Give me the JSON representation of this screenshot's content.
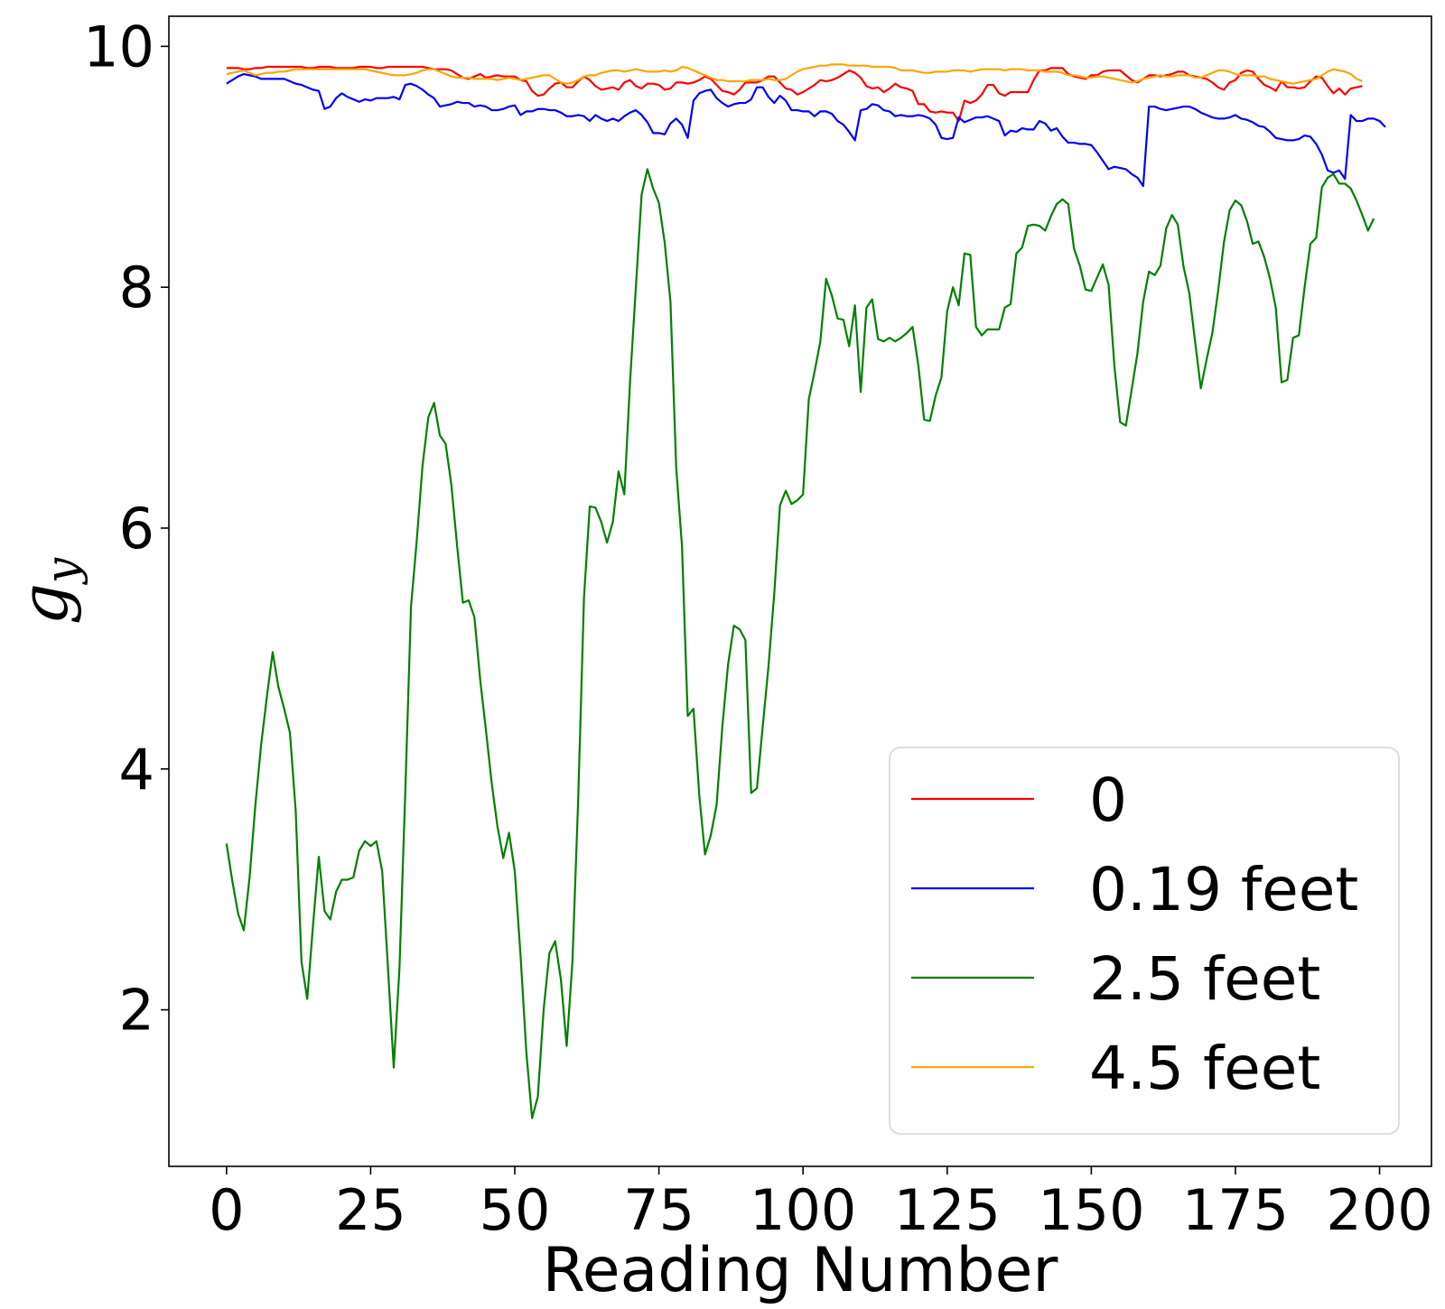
{
  "chart_data": {
    "type": "line",
    "title": "",
    "xlabel": "Reading Number",
    "ylabel": {
      "main": "g",
      "sub": "y"
    },
    "xlim": [
      -10,
      209
    ],
    "ylim": [
      0.7,
      10.25
    ],
    "xticks": [
      0,
      25,
      50,
      75,
      100,
      125,
      150,
      175,
      200
    ],
    "yticks": [
      2,
      4,
      6,
      8,
      10
    ],
    "grid": false,
    "legend": {
      "position": "lower-right"
    },
    "series": [
      {
        "name": "0",
        "color": "#ff0000",
        "x_start": 0,
        "x_step": 1,
        "values": [
          9.82,
          9.82,
          9.82,
          9.81,
          9.81,
          9.82,
          9.82,
          9.83,
          9.83,
          9.83,
          9.83,
          9.83,
          9.83,
          9.83,
          9.82,
          9.82,
          9.83,
          9.83,
          9.83,
          9.82,
          9.82,
          9.82,
          9.82,
          9.83,
          9.83,
          9.83,
          9.82,
          9.82,
          9.83,
          9.83,
          9.83,
          9.83,
          9.83,
          9.83,
          9.83,
          9.82,
          9.81,
          9.81,
          9.81,
          9.8,
          9.77,
          9.74,
          9.73,
          9.75,
          9.77,
          9.74,
          9.75,
          9.76,
          9.75,
          9.75,
          9.75,
          9.72,
          9.71,
          9.63,
          9.59,
          9.6,
          9.65,
          9.69,
          9.7,
          9.66,
          9.66,
          9.71,
          9.75,
          9.72,
          9.67,
          9.64,
          9.65,
          9.66,
          9.64,
          9.7,
          9.72,
          9.67,
          9.65,
          9.69,
          9.69,
          9.68,
          9.64,
          9.65,
          9.7,
          9.7,
          9.69,
          9.7,
          9.72,
          9.75,
          9.73,
          9.68,
          9.63,
          9.62,
          9.6,
          9.64,
          9.7,
          9.7,
          9.7,
          9.72,
          9.75,
          9.75,
          9.7,
          9.65,
          9.64,
          9.6,
          9.62,
          9.65,
          9.68,
          9.72,
          9.71,
          9.72,
          9.74,
          9.77,
          9.8,
          9.78,
          9.74,
          9.67,
          9.65,
          9.66,
          9.62,
          9.65,
          9.69,
          9.66,
          9.65,
          9.63,
          9.52,
          9.52,
          9.46,
          9.45,
          9.46,
          9.45,
          9.45,
          9.38,
          9.55,
          9.53,
          9.55,
          9.6,
          9.68,
          9.68,
          9.61,
          9.59,
          9.62,
          9.62,
          9.62,
          9.62,
          9.72,
          9.8,
          9.8,
          9.82,
          9.82,
          9.82,
          9.77,
          9.75,
          9.74,
          9.73,
          9.76,
          9.76,
          9.79,
          9.8,
          9.8,
          9.8,
          9.76,
          9.72,
          9.7,
          9.73,
          9.76,
          9.76,
          9.75,
          9.76,
          9.77,
          9.79,
          9.79,
          9.76,
          9.75,
          9.74,
          9.73,
          9.7,
          9.66,
          9.64,
          9.7,
          9.72,
          9.78,
          9.8,
          9.79,
          9.73,
          9.68,
          9.66,
          9.63,
          9.71,
          9.66,
          9.66,
          9.65,
          9.66,
          9.71,
          9.75,
          9.74,
          9.67,
          9.61,
          9.65,
          9.6,
          9.65,
          9.66,
          9.67
        ]
      },
      {
        "name": "0.19 feet",
        "color": "#0000ff",
        "x_start": 0,
        "x_step": 1,
        "values": [
          9.69,
          9.72,
          9.75,
          9.77,
          9.76,
          9.75,
          9.73,
          9.73,
          9.73,
          9.73,
          9.73,
          9.71,
          9.69,
          9.68,
          9.66,
          9.64,
          9.63,
          9.48,
          9.5,
          9.57,
          9.61,
          9.58,
          9.56,
          9.54,
          9.56,
          9.55,
          9.57,
          9.57,
          9.57,
          9.58,
          9.56,
          9.68,
          9.69,
          9.67,
          9.64,
          9.6,
          9.57,
          9.5,
          9.51,
          9.52,
          9.54,
          9.53,
          9.53,
          9.5,
          9.51,
          9.5,
          9.47,
          9.47,
          9.48,
          9.5,
          9.51,
          9.43,
          9.46,
          9.46,
          9.48,
          9.48,
          9.47,
          9.47,
          9.45,
          9.42,
          9.42,
          9.43,
          9.42,
          9.38,
          9.43,
          9.4,
          9.38,
          9.4,
          9.38,
          9.42,
          9.45,
          9.47,
          9.43,
          9.37,
          9.28,
          9.28,
          9.27,
          9.36,
          9.4,
          9.35,
          9.24,
          9.55,
          9.61,
          9.63,
          9.64,
          9.57,
          9.53,
          9.5,
          9.52,
          9.53,
          9.53,
          9.56,
          9.66,
          9.66,
          9.58,
          9.53,
          9.59,
          9.55,
          9.47,
          9.47,
          9.46,
          9.46,
          9.42,
          9.46,
          9.46,
          9.44,
          9.38,
          9.35,
          9.29,
          9.22,
          9.47,
          9.48,
          9.52,
          9.51,
          9.47,
          9.46,
          9.42,
          9.43,
          9.42,
          9.42,
          9.43,
          9.42,
          9.4,
          9.35,
          9.24,
          9.23,
          9.24,
          9.41,
          9.37,
          9.39,
          9.41,
          9.41,
          9.42,
          9.4,
          9.38,
          9.26,
          9.3,
          9.29,
          9.32,
          9.31,
          9.31,
          9.38,
          9.36,
          9.3,
          9.32,
          9.25,
          9.2,
          9.2,
          9.19,
          9.19,
          9.18,
          9.12,
          9.05,
          8.98,
          9.0,
          8.99,
          8.98,
          8.94,
          8.91,
          8.84,
          9.5,
          9.5,
          9.48,
          9.47,
          9.48,
          9.49,
          9.5,
          9.5,
          9.48,
          9.45,
          9.43,
          9.41,
          9.4,
          9.4,
          9.41,
          9.43,
          9.4,
          9.39,
          9.37,
          9.34,
          9.33,
          9.29,
          9.24,
          9.23,
          9.22,
          9.22,
          9.23,
          9.26,
          9.25,
          9.19,
          9.1,
          8.97,
          8.95,
          8.97,
          8.9,
          9.43,
          9.38,
          9.38,
          9.4,
          9.4,
          9.38,
          9.33
        ]
      },
      {
        "name": "2.5 feet",
        "color": "#008000",
        "x_start": 0,
        "x_step": 1,
        "values": [
          3.38,
          3.07,
          2.8,
          2.66,
          3.1,
          3.7,
          4.2,
          4.6,
          4.97,
          4.68,
          4.5,
          4.3,
          3.65,
          2.4,
          2.09,
          2.7,
          3.27,
          2.82,
          2.75,
          2.98,
          3.08,
          3.08,
          3.1,
          3.32,
          3.4,
          3.36,
          3.4,
          3.15,
          2.35,
          1.52,
          2.35,
          3.8,
          5.35,
          5.9,
          6.52,
          6.92,
          7.04,
          6.77,
          6.7,
          6.36,
          5.85,
          5.38,
          5.4,
          5.26,
          4.74,
          4.32,
          3.88,
          3.52,
          3.26,
          3.47,
          3.15,
          2.45,
          1.65,
          1.1,
          1.28,
          2.0,
          2.47,
          2.57,
          2.25,
          1.7,
          2.4,
          3.75,
          5.42,
          6.18,
          6.17,
          6.05,
          5.88,
          6.05,
          6.47,
          6.28,
          7.22,
          8.0,
          8.77,
          8.98,
          8.82,
          8.7,
          8.37,
          7.88,
          6.5,
          5.85,
          4.44,
          4.5,
          3.78,
          3.29,
          3.45,
          3.7,
          4.35,
          4.87,
          5.19,
          5.16,
          5.07,
          3.8,
          3.84,
          4.35,
          4.85,
          5.45,
          6.19,
          6.31,
          6.2,
          6.23,
          6.28,
          7.07,
          7.3,
          7.55,
          8.07,
          7.93,
          7.74,
          7.73,
          7.51,
          7.85,
          7.13,
          7.83,
          7.9,
          7.57,
          7.55,
          7.58,
          7.55,
          7.58,
          7.62,
          7.67,
          7.35,
          6.9,
          6.89,
          7.1,
          7.25,
          7.8,
          8.0,
          7.85,
          8.28,
          8.27,
          7.67,
          7.6,
          7.65,
          7.65,
          7.65,
          7.83,
          7.86,
          8.28,
          8.33,
          8.51,
          8.52,
          8.51,
          8.47,
          8.59,
          8.69,
          8.73,
          8.69,
          8.32,
          8.18,
          7.98,
          7.97,
          8.08,
          8.19,
          8.02,
          7.35,
          6.88,
          6.85,
          7.15,
          7.45,
          7.88,
          8.13,
          8.1,
          8.18,
          8.49,
          8.6,
          8.52,
          8.17,
          7.95,
          7.55,
          7.16,
          7.4,
          7.62,
          7.97,
          8.37,
          8.64,
          8.72,
          8.68,
          8.55,
          8.36,
          8.38,
          8.25,
          8.07,
          7.83,
          7.21,
          7.23,
          7.58,
          7.6,
          8.0,
          8.36,
          8.41,
          8.83,
          8.91,
          8.94,
          8.86,
          8.86,
          8.82,
          8.72,
          8.6,
          8.47,
          8.57
        ]
      },
      {
        "name": "4.5 feet",
        "color": "#ffa500",
        "x_start": 0,
        "x_step": 1,
        "values": [
          9.77,
          9.78,
          9.79,
          9.8,
          9.78,
          9.76,
          9.77,
          9.78,
          9.78,
          9.79,
          9.79,
          9.8,
          9.81,
          9.81,
          9.81,
          9.81,
          9.81,
          9.81,
          9.81,
          9.81,
          9.81,
          9.81,
          9.81,
          9.81,
          9.81,
          9.8,
          9.79,
          9.78,
          9.77,
          9.76,
          9.76,
          9.76,
          9.77,
          9.78,
          9.8,
          9.81,
          9.81,
          9.79,
          9.77,
          9.75,
          9.74,
          9.74,
          9.74,
          9.73,
          9.73,
          9.73,
          9.73,
          9.72,
          9.73,
          9.74,
          9.73,
          9.72,
          9.73,
          9.74,
          9.75,
          9.76,
          9.76,
          9.73,
          9.7,
          9.69,
          9.7,
          9.72,
          9.75,
          9.76,
          9.76,
          9.78,
          9.79,
          9.8,
          9.8,
          9.79,
          9.8,
          9.81,
          9.8,
          9.79,
          9.79,
          9.79,
          9.8,
          9.79,
          9.8,
          9.83,
          9.82,
          9.8,
          9.78,
          9.76,
          9.74,
          9.72,
          9.72,
          9.71,
          9.71,
          9.71,
          9.71,
          9.72,
          9.72,
          9.72,
          9.73,
          9.72,
          9.72,
          9.73,
          9.76,
          9.79,
          9.81,
          9.82,
          9.83,
          9.84,
          9.84,
          9.85,
          9.85,
          9.85,
          9.84,
          9.84,
          9.84,
          9.84,
          9.83,
          9.83,
          9.83,
          9.83,
          9.82,
          9.8,
          9.8,
          9.8,
          9.79,
          9.78,
          9.78,
          9.79,
          9.79,
          9.79,
          9.8,
          9.8,
          9.8,
          9.79,
          9.8,
          9.81,
          9.81,
          9.81,
          9.81,
          9.8,
          9.81,
          9.81,
          9.81,
          9.8,
          9.8,
          9.8,
          9.79,
          9.79,
          9.79,
          9.78,
          9.76,
          9.76,
          9.75,
          9.74,
          9.74,
          9.75,
          9.75,
          9.74,
          9.73,
          9.72,
          9.71,
          9.7,
          9.71,
          9.73,
          9.74,
          9.75,
          9.76,
          9.75,
          9.75,
          9.76,
          9.76,
          9.76,
          9.74,
          9.74,
          9.76,
          9.78,
          9.8,
          9.8,
          9.79,
          9.77,
          9.76,
          9.76,
          9.76,
          9.75,
          9.75,
          9.73,
          9.72,
          9.71,
          9.7,
          9.69,
          9.7,
          9.71,
          9.72,
          9.73,
          9.76,
          9.79,
          9.81,
          9.8,
          9.79,
          9.77,
          9.73,
          9.71
        ]
      }
    ]
  }
}
